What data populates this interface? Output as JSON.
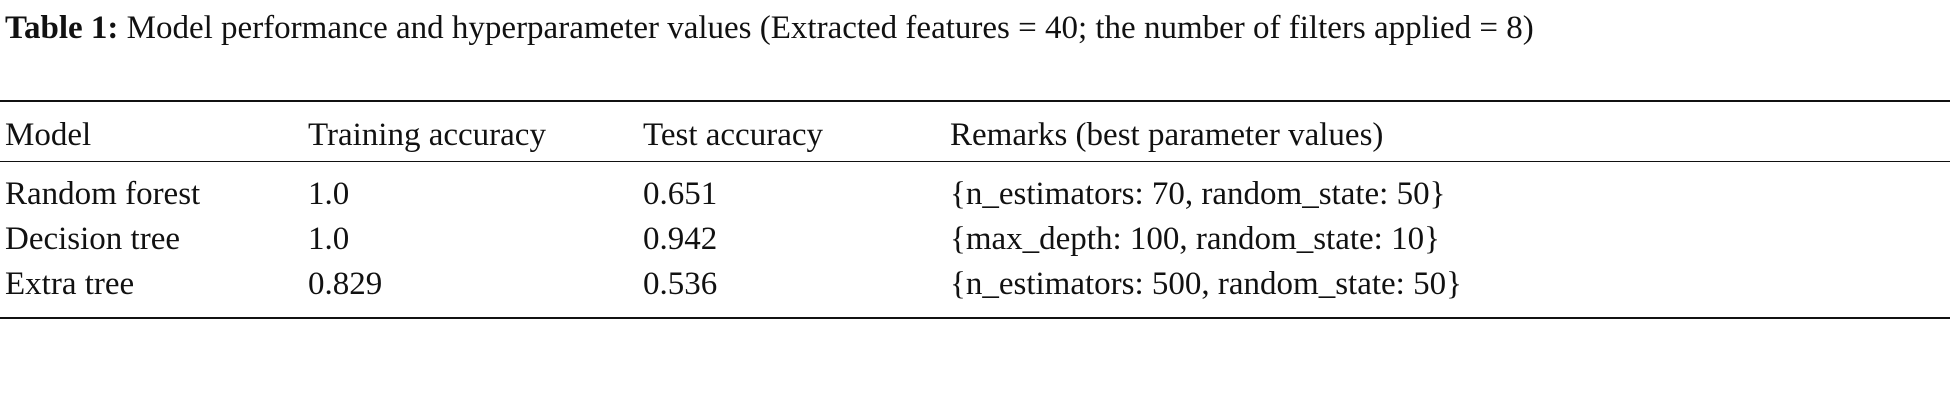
{
  "caption": {
    "label": "Table 1:",
    "text": "Model performance and hyperparameter values (Extracted features = 40; the number of filters applied = 8)"
  },
  "table": {
    "headers": [
      "Model",
      "Training accuracy",
      "Test accuracy",
      "Remarks (best parameter values)"
    ],
    "rows": [
      [
        "Random forest",
        "1.0",
        "0.651",
        "{n_estimators: 70, random_state: 50}"
      ],
      [
        "Decision tree",
        "1.0",
        "0.942",
        "{max_depth: 100, random_state: 10}"
      ],
      [
        "Extra tree",
        "0.829",
        "0.536",
        "{n_estimators: 500, random_state: 50}"
      ]
    ]
  }
}
